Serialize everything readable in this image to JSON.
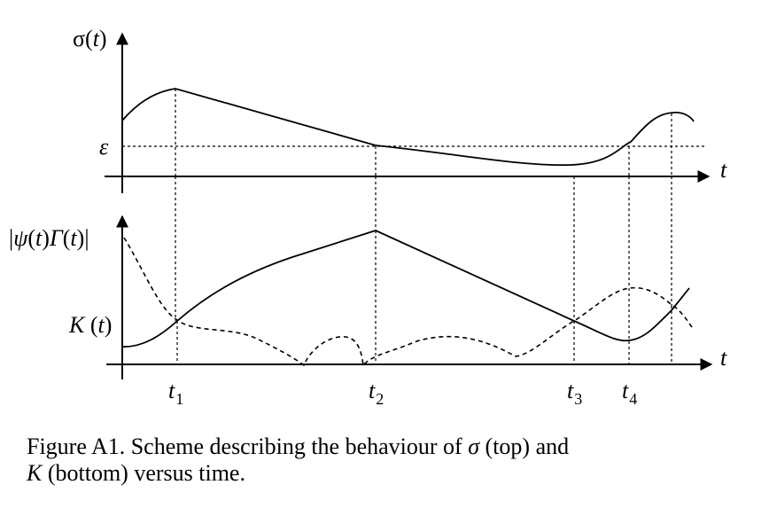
{
  "figure": {
    "top_panel": {
      "y_label": {
        "fn": "σ(",
        "var": "t",
        "close": ")"
      },
      "x_label": "t",
      "level_label": "ε"
    },
    "bottom_panel": {
      "y_label": {
        "open": "|",
        "psi": "ψ",
        "t1": "t",
        "mid": ")",
        "gamma": "Γ",
        "t2": "t",
        "close": ")|",
        "paren1": "(",
        "paren2": "("
      },
      "k_label": {
        "k": "K",
        "open": " (",
        "var": "t",
        "close": ")"
      },
      "x_label": "t"
    },
    "time_marks": [
      {
        "base": "t",
        "sub": "1"
      },
      {
        "base": "t",
        "sub": "2"
      },
      {
        "base": "t",
        "sub": "3"
      },
      {
        "base": "t",
        "sub": "4"
      }
    ]
  },
  "caption": {
    "prefix": "Figure A1.  Scheme describing the behaviour of ",
    "sigma": "σ",
    "mid": " (top) and",
    "k": "K",
    "suffix": " (bottom) versus time."
  }
}
